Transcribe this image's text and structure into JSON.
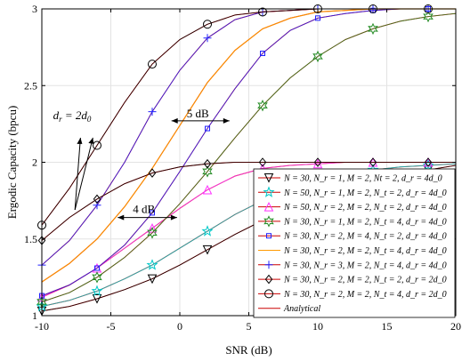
{
  "chart_data": {
    "type": "line",
    "xlabel": "SNR (dB)",
    "ylabel": "Ergodic Capacity (bpcu)",
    "xlim": [
      -10,
      20
    ],
    "ylim": [
      1,
      3
    ],
    "xticks": [
      -10,
      -5,
      0,
      5,
      10,
      15,
      20
    ],
    "yticks": [
      1,
      1.5,
      2,
      2.5,
      3
    ],
    "xtick_labels": [
      "-10",
      "-5",
      "0",
      "5",
      "10",
      "15",
      "20"
    ],
    "ytick_labels": [
      "1",
      "1.5",
      "2",
      "2.5",
      "3"
    ],
    "grid": true,
    "legend_position": "bottom-right",
    "annotations": [
      {
        "text": "5 dB",
        "x": 1.2,
        "y": 2.27
      },
      {
        "text": "4 dB",
        "x": -2.5,
        "y": 1.64
      },
      {
        "text": "d_r = 2d_0",
        "x": -8.0,
        "y": 2.2
      }
    ],
    "series": [
      {
        "name": "N = 30, N_r = 1, M = 2, Nt = 2, d_r = 4d_0",
        "marker": "triangle-down",
        "color": "#000000",
        "x": [
          -10,
          -8,
          -6,
          -4,
          -2,
          0,
          2,
          4,
          6,
          8,
          10,
          12,
          14,
          16,
          18,
          20
        ],
        "y": [
          1.03,
          1.06,
          1.11,
          1.17,
          1.24,
          1.33,
          1.43,
          1.53,
          1.62,
          1.7,
          1.77,
          1.83,
          1.88,
          1.92,
          1.95,
          1.98
        ]
      },
      {
        "name": "N = 50, N_r = 1, M = 2, N_t = 2, d_r = 4d_0",
        "marker": "star",
        "color": "#00c8c8",
        "x": [
          -10,
          -8,
          -6,
          -4,
          -2,
          0,
          2,
          4,
          6,
          8,
          10,
          12,
          14,
          16,
          18,
          20
        ],
        "y": [
          1.06,
          1.1,
          1.16,
          1.24,
          1.33,
          1.44,
          1.55,
          1.66,
          1.75,
          1.82,
          1.88,
          1.92,
          1.95,
          1.97,
          1.98,
          1.99
        ]
      },
      {
        "name": "N = 50, N_r = 2, M = 2, N_t = 2, d_r = 4d_0",
        "marker": "triangle-up",
        "color": "#ff33ff",
        "x": [
          -10,
          -8,
          -6,
          -4,
          -2,
          0,
          2,
          4,
          6,
          8,
          10,
          12,
          14,
          16,
          18,
          20
        ],
        "y": [
          1.12,
          1.2,
          1.31,
          1.44,
          1.57,
          1.7,
          1.82,
          1.91,
          1.96,
          1.98,
          1.99,
          2.0,
          2.0,
          2.0,
          2.0,
          2.0
        ]
      },
      {
        "name": "N = 30, N_r = 1, M = 2, N_t = 4, d_r = 4d_0",
        "marker": "hexagram",
        "color": "#228b22",
        "x": [
          -10,
          -8,
          -6,
          -4,
          -2,
          0,
          2,
          4,
          6,
          8,
          10,
          12,
          14,
          16,
          18,
          20
        ],
        "y": [
          1.09,
          1.15,
          1.25,
          1.38,
          1.54,
          1.73,
          1.94,
          2.16,
          2.37,
          2.55,
          2.69,
          2.8,
          2.87,
          2.92,
          2.95,
          2.97
        ]
      },
      {
        "name": "N = 30, N_r = 2, M = 4, N_t = 2, d_r = 4d_0",
        "marker": "square",
        "color": "#2020ff",
        "x": [
          -10,
          -8,
          -6,
          -4,
          -2,
          0,
          2,
          4,
          6,
          8,
          10,
          12,
          14,
          16,
          18,
          20
        ],
        "y": [
          1.13,
          1.2,
          1.31,
          1.46,
          1.67,
          1.94,
          2.22,
          2.48,
          2.71,
          2.86,
          2.94,
          2.97,
          2.99,
          3.0,
          3.0,
          3.0
        ]
      },
      {
        "name": "N = 30, N_r = 2, M = 2, N_t = 4, d_r = 4d_0",
        "marker": "none",
        "color": "#ff9900",
        "x": [
          -10,
          -8,
          -6,
          -4,
          -2,
          0,
          2,
          4,
          6,
          8,
          10,
          12,
          14,
          16,
          18,
          20
        ],
        "y": [
          1.22,
          1.34,
          1.5,
          1.71,
          1.96,
          2.24,
          2.52,
          2.73,
          2.87,
          2.94,
          2.98,
          2.99,
          3.0,
          3.0,
          3.0,
          3.0
        ]
      },
      {
        "name": "N = 30, N_r = 3, M = 2, N_t = 4, d_r = 4d_0",
        "marker": "plus",
        "color": "#2020ff",
        "x": [
          -10,
          -8,
          -6,
          -4,
          -2,
          0,
          2,
          4,
          6,
          8,
          10,
          12,
          14,
          16,
          18,
          20
        ],
        "y": [
          1.33,
          1.49,
          1.72,
          2.0,
          2.33,
          2.6,
          2.81,
          2.93,
          2.98,
          2.99,
          3.0,
          3.0,
          3.0,
          3.0,
          3.0,
          3.0
        ]
      },
      {
        "name": "N = 30, N_r = 2, M = 2, N_t = 2, d_r = 2d_0",
        "marker": "diamond",
        "color": "#000000",
        "x": [
          -10,
          -8,
          -6,
          -4,
          -2,
          0,
          2,
          4,
          6,
          8,
          10,
          12,
          14,
          16,
          18,
          20
        ],
        "y": [
          1.49,
          1.64,
          1.76,
          1.86,
          1.93,
          1.97,
          1.99,
          2.0,
          2.0,
          2.0,
          2.0,
          2.0,
          2.0,
          2.0,
          2.0,
          2.0
        ]
      },
      {
        "name": "N = 30, N_r = 2, M = 2, N_t = 4, d_r = 2d_0",
        "marker": "circle",
        "color": "#000000",
        "x": [
          -10,
          -8,
          -6,
          -4,
          -2,
          0,
          2,
          4,
          6,
          8,
          10,
          12,
          14,
          16,
          18,
          20
        ],
        "y": [
          1.59,
          1.83,
          2.11,
          2.39,
          2.64,
          2.8,
          2.9,
          2.96,
          2.98,
          2.99,
          3.0,
          3.0,
          3.0,
          3.0,
          3.0,
          3.0
        ]
      },
      {
        "name": "Analytical",
        "marker": "none",
        "color": "#cc0000",
        "legend_only": true,
        "x": [],
        "y": []
      }
    ]
  }
}
